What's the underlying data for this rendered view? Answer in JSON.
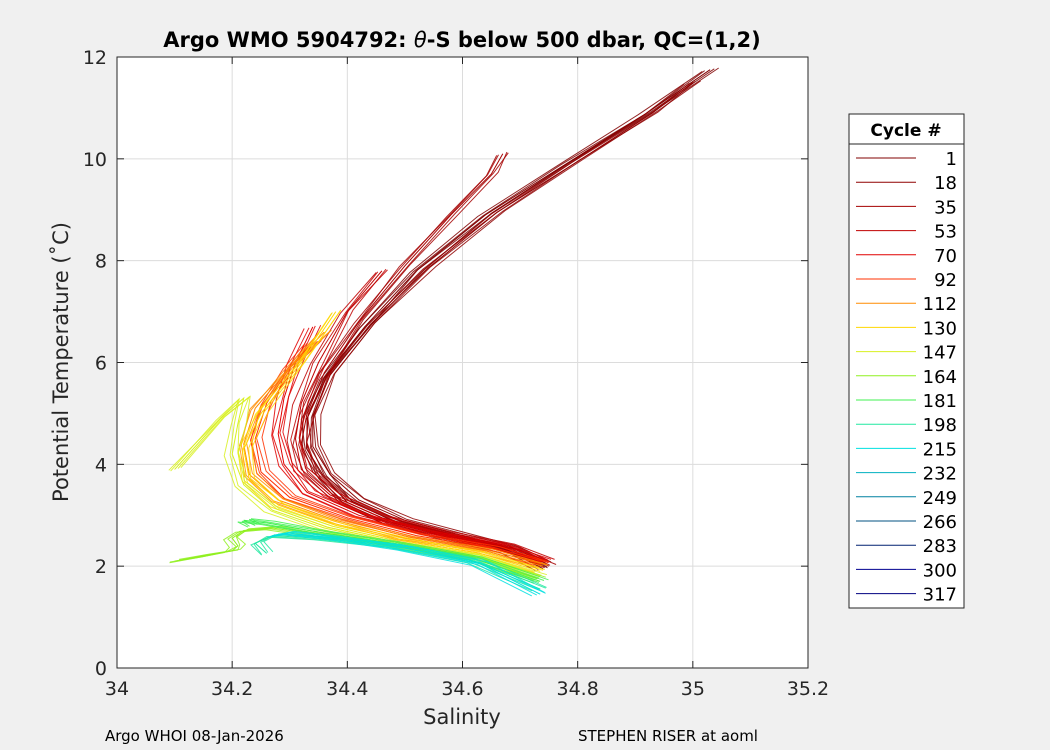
{
  "chart_data": {
    "type": "line",
    "title": "Argo WMO 5904792: θ-S below 500 dbar,  QC=(1,2)",
    "title_prefix": "Argo WMO 5904792: ",
    "title_theta": "θ",
    "title_suffix": "-S below 500 dbar,  QC=(1,2)",
    "xlabel": "Salinity",
    "ylabel": "Potential Temperature (˚C)",
    "xlim": [
      34,
      35.2
    ],
    "ylim": [
      0,
      12
    ],
    "xticks": [
      34,
      34.2,
      34.4,
      34.6,
      34.8,
      35,
      35.2
    ],
    "xtick_labels": [
      "34",
      "34.2",
      "34.4",
      "34.6",
      "34.8",
      "35",
      "35.2"
    ],
    "yticks": [
      0,
      2,
      4,
      6,
      8,
      10,
      12
    ],
    "ytick_labels": [
      "0",
      "2",
      "4",
      "6",
      "8",
      "10",
      "12"
    ],
    "grid": true,
    "legend_title": "Cycle #",
    "legend_position": "right-outside",
    "series": [
      {
        "name": "1",
        "color": "#800000",
        "salinity": [
          34.74,
          34.68,
          34.58,
          34.48,
          34.4,
          34.36,
          34.33,
          34.33,
          34.36,
          34.43,
          34.52,
          34.64,
          34.78,
          34.92,
          35.03
        ],
        "theta": [
          1.95,
          2.3,
          2.55,
          2.85,
          3.25,
          3.75,
          4.3,
          4.9,
          5.7,
          6.7,
          7.8,
          8.9,
          9.9,
          10.9,
          11.75
        ]
      },
      {
        "name": "18",
        "color": "#8f0000",
        "salinity": [
          34.745,
          34.69,
          34.6,
          34.5,
          34.42,
          34.37,
          34.34,
          34.34,
          34.37,
          34.44,
          34.54,
          34.66,
          34.8,
          34.93,
          35.0
        ],
        "theta": [
          2.05,
          2.35,
          2.6,
          2.9,
          3.3,
          3.8,
          4.35,
          4.95,
          5.75,
          6.75,
          7.85,
          8.95,
          9.95,
          10.9,
          11.5
        ]
      },
      {
        "name": "35",
        "color": "#a50000",
        "salinity": [
          34.75,
          34.69,
          34.59,
          34.48,
          34.39,
          34.34,
          34.32,
          34.33,
          34.36,
          34.42,
          34.5,
          34.58,
          34.65,
          34.67
        ],
        "theta": [
          2.0,
          2.3,
          2.55,
          2.85,
          3.3,
          3.85,
          4.4,
          5.0,
          5.8,
          6.8,
          7.9,
          8.9,
          9.7,
          10.1
        ]
      },
      {
        "name": "53",
        "color": "#c00000",
        "salinity": [
          34.745,
          34.68,
          34.57,
          34.46,
          34.37,
          34.32,
          34.31,
          34.32,
          34.35,
          34.4,
          34.46
        ],
        "theta": [
          2.1,
          2.4,
          2.65,
          2.95,
          3.4,
          3.9,
          4.5,
          5.2,
          6.0,
          7.0,
          7.8
        ]
      },
      {
        "name": "70",
        "color": "#e00000",
        "salinity": [
          34.74,
          34.66,
          34.54,
          34.42,
          34.33,
          34.29,
          34.28,
          34.29,
          34.31,
          34.34
        ],
        "theta": [
          2.1,
          2.4,
          2.65,
          3.0,
          3.45,
          4.0,
          4.6,
          5.3,
          6.0,
          6.7
        ]
      },
      {
        "name": "92",
        "color": "#ff3000",
        "salinity": [
          34.74,
          34.65,
          34.52,
          34.4,
          34.3,
          34.25,
          34.24,
          34.26,
          34.3,
          34.34
        ],
        "theta": [
          2.05,
          2.35,
          2.6,
          2.95,
          3.35,
          3.85,
          4.5,
          5.2,
          5.9,
          6.4
        ]
      },
      {
        "name": "112",
        "color": "#ff8c00",
        "salinity": [
          34.74,
          34.64,
          34.5,
          34.38,
          34.28,
          34.23,
          34.22,
          34.24,
          34.3,
          34.36
        ],
        "theta": [
          2.0,
          2.3,
          2.55,
          2.9,
          3.3,
          3.8,
          4.4,
          5.1,
          5.9,
          6.6
        ]
      },
      {
        "name": "130",
        "color": "#ffd700",
        "salinity": [
          34.735,
          34.63,
          34.5,
          34.38,
          34.28,
          34.23,
          34.22,
          34.25,
          34.32,
          34.38
        ],
        "theta": [
          1.9,
          2.25,
          2.5,
          2.8,
          3.2,
          3.7,
          4.3,
          5.0,
          6.0,
          7.0
        ]
      },
      {
        "name": "147",
        "color": "#d8f020",
        "salinity": [
          34.735,
          34.62,
          34.48,
          34.36,
          34.27,
          34.22,
          34.2,
          34.21,
          34.22,
          34.18,
          34.1
        ],
        "theta": [
          1.8,
          2.2,
          2.45,
          2.75,
          3.1,
          3.6,
          4.2,
          4.8,
          5.3,
          4.9,
          3.9
        ]
      },
      {
        "name": "164",
        "color": "#90f020",
        "salinity": [
          34.73,
          34.62,
          34.48,
          34.36,
          34.27,
          34.22,
          34.2,
          34.21,
          34.2,
          34.15,
          34.1
        ],
        "theta": [
          1.75,
          2.15,
          2.4,
          2.6,
          2.75,
          2.7,
          2.55,
          2.4,
          2.3,
          2.2,
          2.1
        ]
      },
      {
        "name": "181",
        "color": "#40f050",
        "salinity": [
          34.735,
          34.62,
          34.48,
          34.36,
          34.26,
          34.22,
          34.24
        ],
        "theta": [
          1.7,
          2.15,
          2.45,
          2.65,
          2.85,
          2.9,
          2.8
        ]
      },
      {
        "name": "198",
        "color": "#20e8a0",
        "salinity": [
          34.735,
          34.62,
          34.48,
          34.35,
          34.27,
          34.24,
          34.26
        ],
        "theta": [
          1.55,
          2.1,
          2.4,
          2.55,
          2.6,
          2.45,
          2.25
        ]
      },
      {
        "name": "215",
        "color": "#00e0e0",
        "salinity": [
          34.735,
          34.63,
          34.5,
          34.38,
          34.3,
          34.27
        ],
        "theta": [
          1.45,
          2.05,
          2.35,
          2.55,
          2.65,
          2.6
        ]
      },
      {
        "name": "232",
        "color": "#00b0c0",
        "salinity": [],
        "theta": []
      },
      {
        "name": "249",
        "color": "#0080a0",
        "salinity": [],
        "theta": []
      },
      {
        "name": "266",
        "color": "#005080",
        "salinity": [],
        "theta": []
      },
      {
        "name": "283",
        "color": "#002070",
        "salinity": [],
        "theta": []
      },
      {
        "name": "300",
        "color": "#000090",
        "salinity": [],
        "theta": []
      },
      {
        "name": "317",
        "color": "#000080",
        "salinity": [],
        "theta": []
      }
    ]
  },
  "footer": {
    "left": "Argo WHOI 08-Jan-2026",
    "right": "STEPHEN RISER at aoml"
  }
}
